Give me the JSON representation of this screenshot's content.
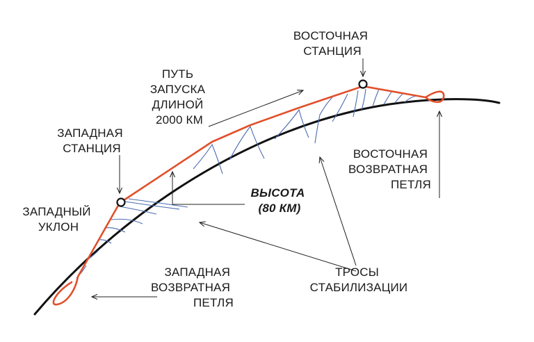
{
  "labels": {
    "east_station": [
      "ВОСТОЧНАЯ",
      "СТАНЦИЯ"
    ],
    "launch_path": [
      "ПУТЬ",
      "ЗАПУСКА",
      "ДЛИНОЙ",
      "2000 КМ"
    ],
    "west_station": [
      "ЗАПАДНАЯ",
      "СТАНЦИЯ"
    ],
    "east_loop": [
      "ВОСТОЧНАЯ",
      "ВОЗВРАТНАЯ",
      "ПЕТЛЯ"
    ],
    "altitude": [
      "ВЫСОТА",
      "(80 КМ)"
    ],
    "west_slope": [
      "ЗАПАДНЫЙ",
      "УКЛОН"
    ],
    "west_loop": [
      "ЗАПАДНАЯ",
      "ВОЗВРАТНАЯ",
      "ПЕТЛЯ"
    ],
    "cables": [
      "ТРОСЫ",
      "СТАБИЛИЗАЦИИ"
    ]
  },
  "colors": {
    "track": "#e0502a",
    "earth": "#111111",
    "cables": "#4a6ab0"
  }
}
